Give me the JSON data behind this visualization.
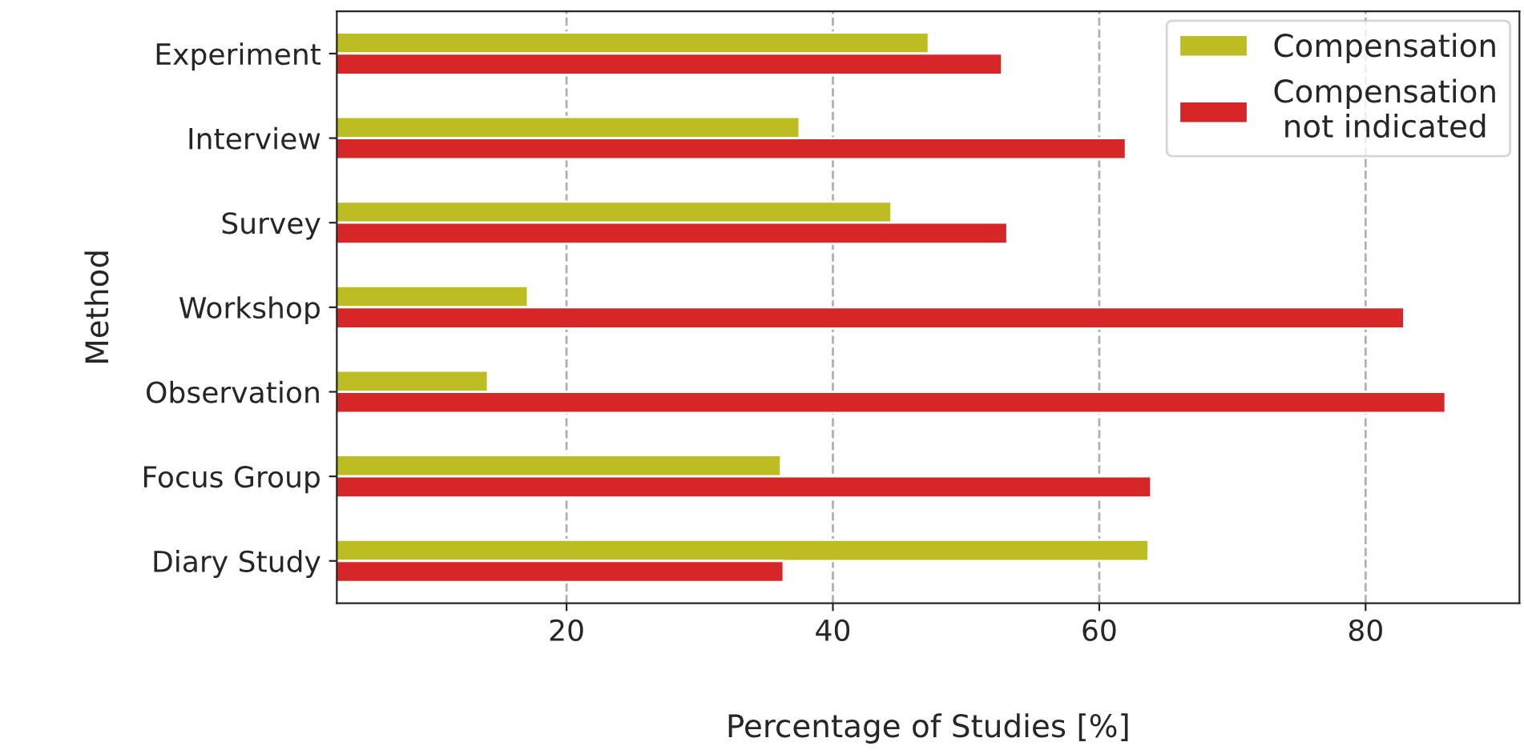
{
  "chart_data": {
    "type": "bar",
    "orientation": "horizontal",
    "xlabel": "Percentage of Studies [%]",
    "ylabel": "Method",
    "categories": [
      "Experiment",
      "Interview",
      "Survey",
      "Workshop",
      "Observation",
      "Focus Group",
      "Diary Study"
    ],
    "series": [
      {
        "name": "Compensation",
        "color": "#bcbd22",
        "values": [
          47.2,
          37.5,
          44.4,
          17.1,
          14.1,
          36.1,
          63.7
        ]
      },
      {
        "name": "Compensation\nnot indicated",
        "color": "#d62728",
        "values": [
          52.7,
          62.0,
          53.1,
          82.9,
          86.0,
          63.9,
          36.3
        ]
      }
    ],
    "xlim": [
      2.75,
      91.55
    ],
    "xticks": [
      20,
      40,
      60,
      80
    ],
    "grid": "x",
    "legend": "top right"
  }
}
